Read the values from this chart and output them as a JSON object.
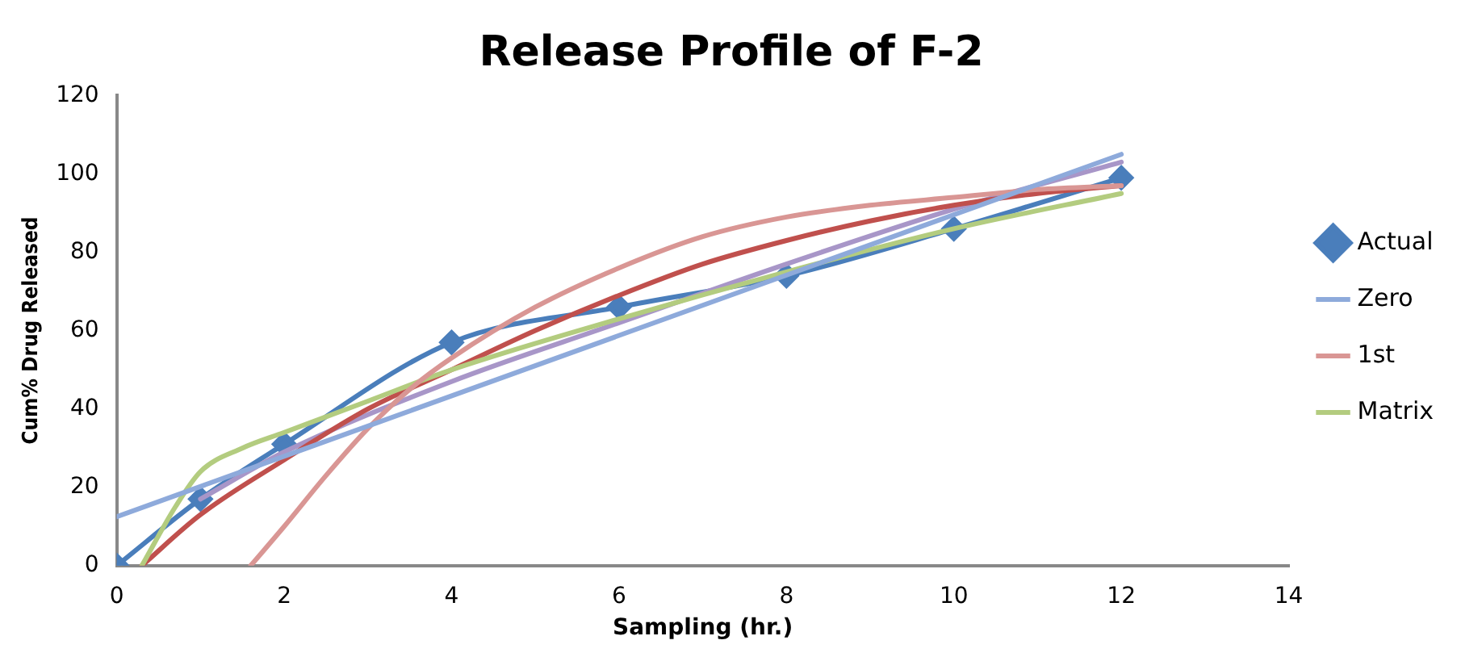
{
  "chart_data": {
    "type": "line",
    "title": "Release Profile of F-2",
    "xlabel": "Sampling (hr.)",
    "ylabel": "Cum% Drug Released",
    "xlim": [
      0,
      14
    ],
    "xticks": [
      0,
      2,
      4,
      6,
      8,
      10,
      12,
      14
    ],
    "ylim": [
      0,
      120
    ],
    "yticks": [
      0,
      20,
      40,
      60,
      80,
      100,
      120
    ],
    "grid": false,
    "legend": "right",
    "line_style": "solid",
    "series": [
      {
        "name": "Actual",
        "color": "#4a7ebb",
        "marker": "diamond",
        "x": [
          0,
          1,
          2,
          4,
          6,
          8,
          10,
          12
        ],
        "values": [
          0,
          17,
          31,
          57,
          66,
          74,
          86,
          99
        ]
      },
      {
        "name": "Zero",
        "color": "#8eaadb",
        "marker": "none",
        "x": [
          0,
          12
        ],
        "values": [
          12.5,
          105
        ]
      },
      {
        "name": "1st",
        "color": "#d99694",
        "marker": "none",
        "x": [
          1.6,
          2,
          2.5,
          3,
          3.5,
          4,
          5,
          6,
          7,
          8,
          9,
          10,
          11,
          12
        ],
        "values": [
          0,
          10,
          23,
          35,
          45,
          53,
          66,
          76,
          84,
          89,
          92,
          94,
          96,
          97
        ]
      },
      {
        "name": "Matrix",
        "color": "#b3cc7f",
        "marker": "none",
        "x": [
          0.3,
          0.7,
          1,
          1.5,
          2,
          3,
          4,
          6,
          8,
          10,
          12
        ],
        "values": [
          0,
          15,
          24,
          30,
          34,
          42,
          50,
          63,
          75,
          86,
          95
        ]
      },
      {
        "color": "#c0504d",
        "marker": "none",
        "x": [
          0.3,
          1,
          2,
          3,
          4,
          5,
          6,
          7,
          8,
          9,
          10,
          11,
          12
        ],
        "values": [
          0,
          13,
          27,
          40,
          50,
          60,
          69,
          77,
          83,
          88,
          92,
          95,
          97
        ]
      },
      {
        "color": "#a896c8",
        "marker": "none",
        "x": [
          1,
          2,
          4,
          6,
          8,
          10,
          12
        ],
        "values": [
          17,
          29,
          47,
          62,
          77,
          91,
          103
        ]
      }
    ]
  }
}
